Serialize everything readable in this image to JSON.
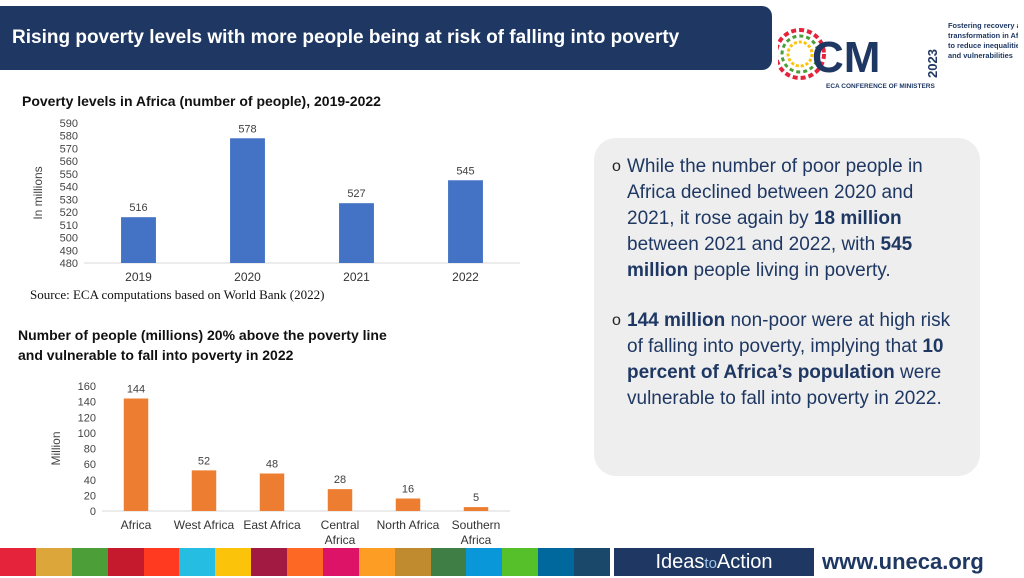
{
  "header": {
    "title": "Rising poverty levels with more people being at risk of falling into poverty"
  },
  "logo": {
    "letters": "CM",
    "year": "2023",
    "caption": "ECA CONFERENCE OF MINISTERS",
    "tagline": [
      "Fostering recovery and",
      "transformation in Africa",
      "to reduce inequalities",
      "and vulnerabilities"
    ]
  },
  "chart1": {
    "title": "Poverty levels in Africa (number of people), 2019-2022"
  },
  "chart2": {
    "title_line1": "Number of people (millions) 20% above the poverty line",
    "title_line2": "and vulnerable to fall into poverty in 2022"
  },
  "source": "Source: ECA computations based on World Bank (2022)",
  "chart_data": [
    {
      "type": "bar",
      "title": "Poverty levels in Africa (number of people), 2019-2022",
      "categories": [
        "2019",
        "2020",
        "2021",
        "2022"
      ],
      "values": [
        516,
        578,
        527,
        545
      ],
      "data_labels": [
        "516",
        "578",
        "527",
        "545"
      ],
      "ylabel": "In millions",
      "xlabel": "",
      "ylim": [
        480,
        590
      ],
      "yticks": [
        480,
        490,
        500,
        510,
        520,
        530,
        540,
        550,
        560,
        570,
        580,
        590
      ],
      "color": "#4472c4",
      "grid": false
    },
    {
      "type": "bar",
      "title": "Number of people (millions) 20% above the poverty line and vulnerable to fall into poverty in 2022",
      "categories": [
        [
          "Africa"
        ],
        [
          "West Africa"
        ],
        [
          "East Africa"
        ],
        [
          "Central",
          "Africa"
        ],
        [
          "North Africa"
        ],
        [
          "Southern",
          "Africa"
        ]
      ],
      "values": [
        144,
        52,
        48,
        28,
        16,
        5
      ],
      "data_labels": [
        "144",
        "52",
        "48",
        "28",
        "16",
        "5"
      ],
      "ylabel": "Million",
      "xlabel": "",
      "ylim": [
        0,
        160
      ],
      "yticks": [
        0,
        20,
        40,
        60,
        80,
        100,
        120,
        140,
        160
      ],
      "color": "#ed7d31",
      "grid": false
    }
  ],
  "callout": {
    "bullet_mark": "o",
    "bullet1": [
      {
        "t": "While the number of poor people in Africa declined between 2020 and 2021, it rose again by ",
        "b": false
      },
      {
        "t": "18 million",
        "b": true
      },
      {
        "t": " between 2021 and 2022, with ",
        "b": false
      },
      {
        "t": "545 million",
        "b": true
      },
      {
        "t": " people living in poverty.",
        "b": false
      }
    ],
    "bullet2": [
      {
        "t": "144 million",
        "b": true
      },
      {
        "t": " non-poor were at high risk of falling into poverty, implying that ",
        "b": false
      },
      {
        "t": "10 percent of Africa’s population",
        "b": true
      },
      {
        "t": " were vulnerable to fall into poverty in 2022.",
        "b": false
      }
    ]
  },
  "footer": {
    "ideas_left": "Ideas",
    "ideas_mid": "to",
    "ideas_right": "Action",
    "url": "www.uneca.org",
    "sdg_colors": [
      "#e5243b",
      "#dda63a",
      "#4c9f38",
      "#c5192d",
      "#ff3a21",
      "#26bde2",
      "#fcc30b",
      "#a21942",
      "#fd6925",
      "#dd1367",
      "#fd9d24",
      "#bf8b2e",
      "#3f7e44",
      "#0a97d9",
      "#56c02b",
      "#00689d",
      "#19486a"
    ]
  },
  "colors": {
    "brand_navy": "#1f3863",
    "bar_blue": "#4472c4",
    "bar_orange": "#ed7d31",
    "callout_bg": "#eeeeee"
  }
}
